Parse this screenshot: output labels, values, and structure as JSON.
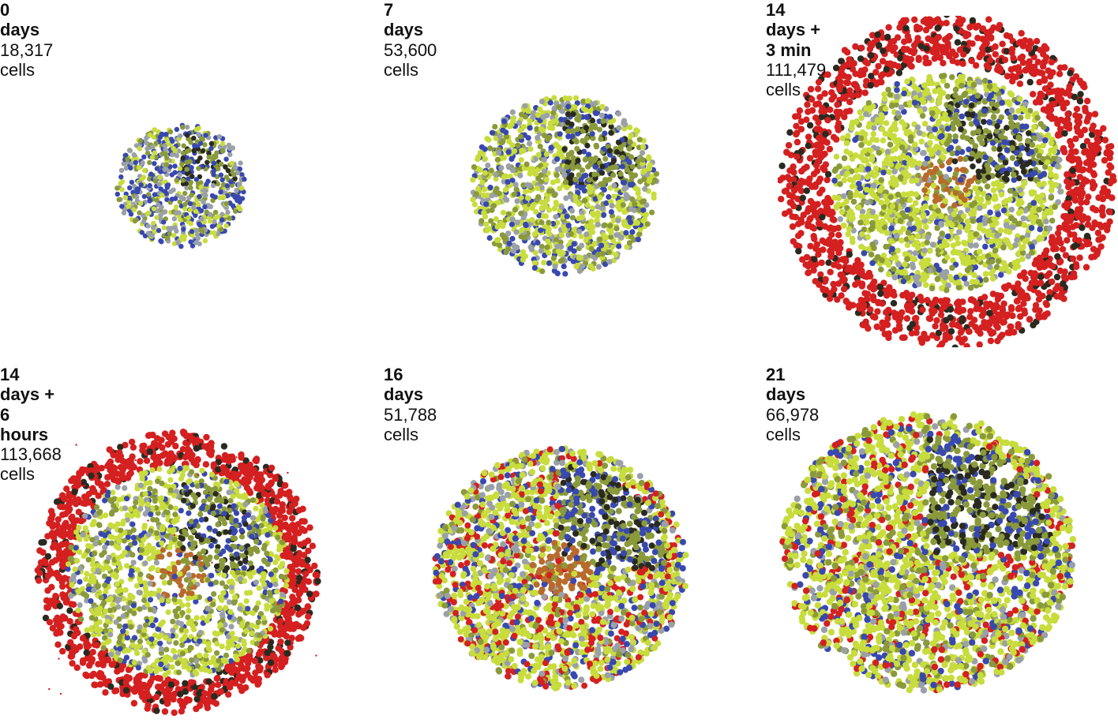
{
  "panels": [
    {
      "title": "0 days",
      "count": "18,317 cells"
    },
    {
      "title": "7 days",
      "count": "53,600 cells"
    },
    {
      "title": "14 days + 3 min",
      "count": "111,479 cells"
    },
    {
      "title": "14 days + 6 hours",
      "count": "113,668 cells"
    },
    {
      "title": "16 days",
      "count": "51,788 cells"
    },
    {
      "title": "21 days",
      "count": "66,978 cells"
    }
  ],
  "colors": {
    "yellow_green": "#c8dc3c",
    "olive": "#8a9a3a",
    "blue": "#3848b0",
    "grey": "#9aa0a8",
    "red": "#d42020",
    "dark": "#2a2a20",
    "orange_core": "#b86a2a"
  }
}
